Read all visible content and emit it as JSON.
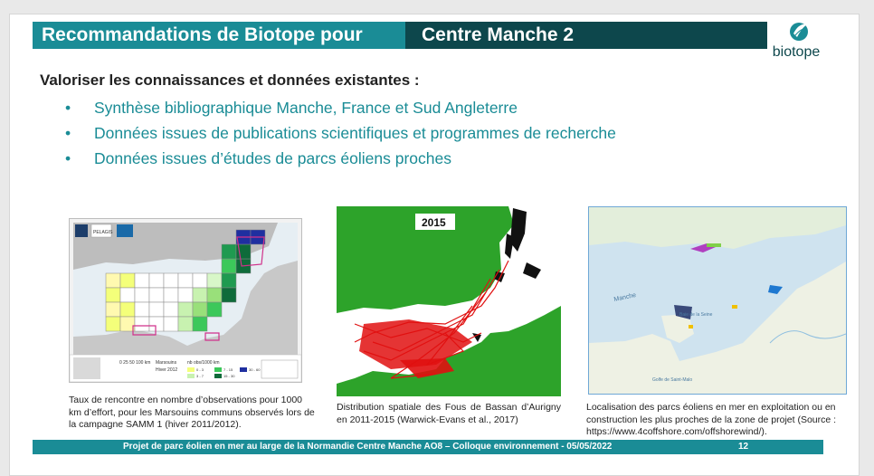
{
  "header": {
    "title_left": "Recommandations de Biotope pour",
    "title_right": "Centre Manche 2"
  },
  "logo": {
    "text": "biotope",
    "icon": "leaf-logo-icon"
  },
  "section": {
    "title": "Valoriser les connaissances et données existantes :",
    "bullets": [
      "Synthèse bibliographique Manche, France et Sud Angleterre",
      "Données issues de publications scientifiques et programmes de recherche",
      "Données issues d’études de parcs éoliens proches"
    ]
  },
  "figures": {
    "map1": {
      "caption": "Taux de rencontre en nombre d’observations pour 1000 km d’effort, pour les Marsouins communs observés lors de la campagne SAMM 1 (hiver 2011/2012).",
      "brand": "PELAGIS",
      "legend_title": "Marsouins",
      "legend_period": "Hiver 2012",
      "legend_unit": "nb obs/1000 km",
      "legend_ranges": [
        "0 - 3",
        "3 - 7",
        "7 - 15",
        "15 - 30",
        "30 - 60"
      ],
      "scale": "0 25 50 100 km"
    },
    "map2": {
      "caption": "Distribution spatiale des Fous de Bassan d’Aurigny en 2011-2015 (Warwick-Evans et al., 2017)",
      "year": "2015"
    },
    "map3": {
      "caption": "Localisation des parcs éoliens en mer en exploitation ou en construction les plus proches de la zone de projet (Source : https://www.4coffshore.com/offshorewind/).",
      "sea_label": "Manche",
      "bay_label": "Baie de la Seine",
      "gulf_label": "Golfe de Saint-Malo"
    }
  },
  "footer": {
    "text": "Projet de parc éolien en mer au large de la Normandie Centre Manche AO8 – Colloque environnement - 05/05/2022",
    "page": "12"
  }
}
